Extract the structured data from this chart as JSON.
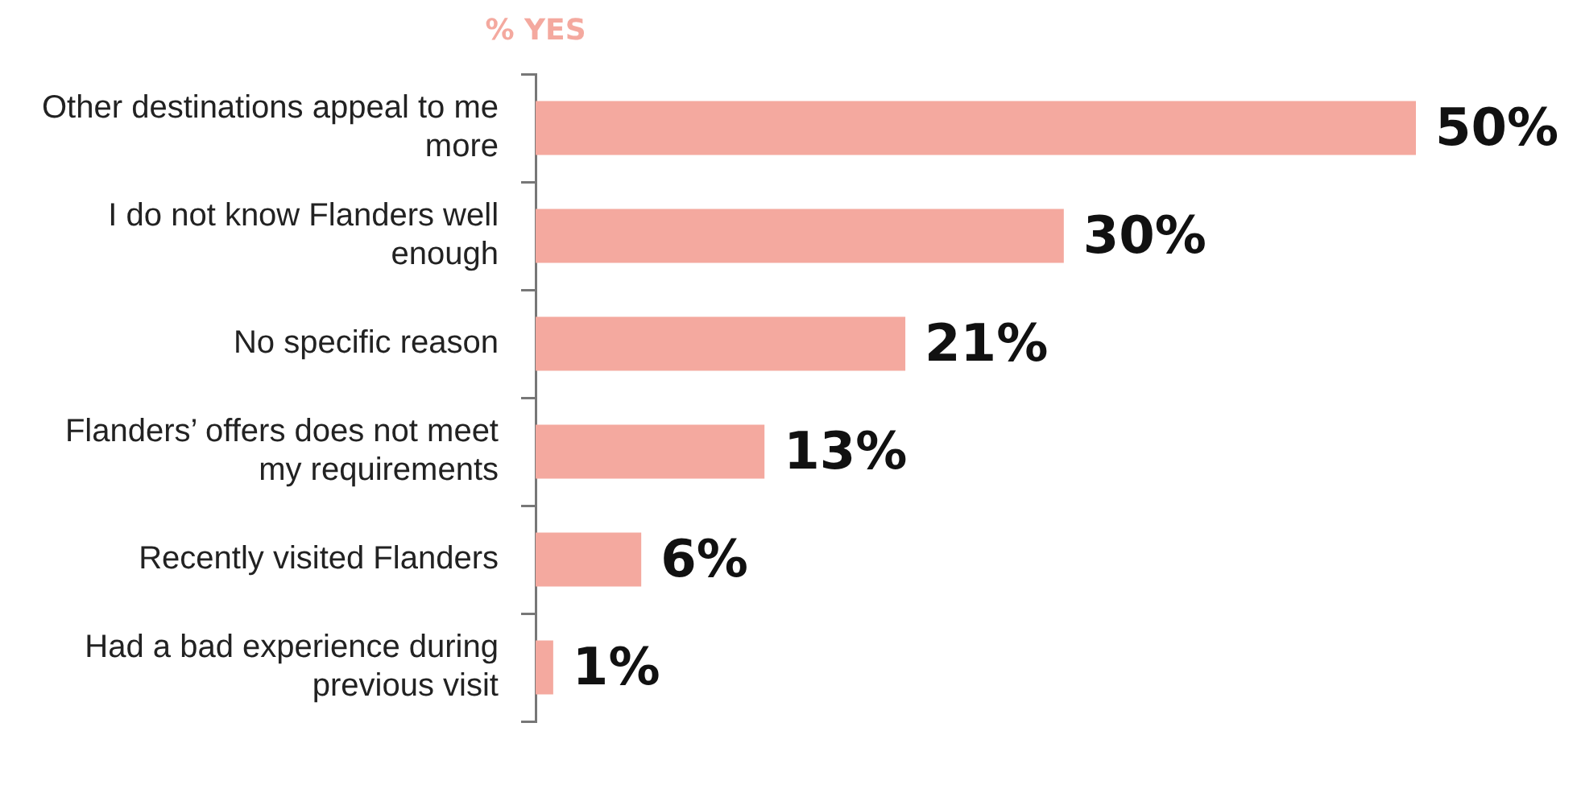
{
  "chart_data": {
    "type": "bar",
    "orientation": "horizontal",
    "title": "% YES",
    "categories": [
      "Other destinations appeal to me more",
      "I do not know Flanders well enough",
      "No specific reason",
      "Flanders’ offers does not meet my requirements",
      "Recently visited Flanders",
      "Had a bad experience during previous visit"
    ],
    "values": [
      50,
      30,
      21,
      13,
      6,
      1
    ],
    "value_labels": [
      "50%",
      "30%",
      "21%",
      "13%",
      "6%",
      "1%"
    ],
    "color": "#f4a99f",
    "tick_labels": "y",
    "legend": false
  }
}
